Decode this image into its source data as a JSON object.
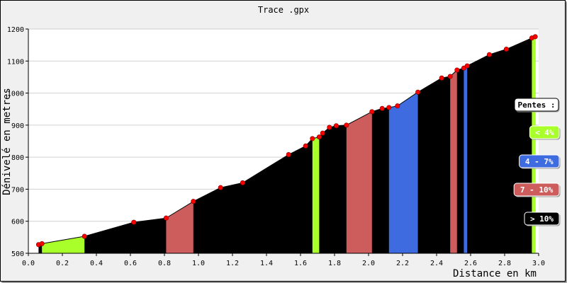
{
  "chart_data": {
    "type": "area",
    "title": "Trace .gpx",
    "xlabel": "Distance en km",
    "ylabel": "Dénivelé en metres",
    "xlim": [
      0.0,
      3.0
    ],
    "ylim": [
      500,
      1200
    ],
    "xticks": [
      "0.0",
      "0.2",
      "0.4",
      "0.6",
      "0.8",
      "1.0",
      "1.2",
      "1.4",
      "1.6",
      "1.8",
      "2.0",
      "2.2",
      "2.4",
      "2.6",
      "2.8",
      "3.0"
    ],
    "yticks": [
      "500",
      "600",
      "700",
      "800",
      "900",
      "1000",
      "1100",
      "1200"
    ],
    "grid": "horizontal",
    "profile": [
      {
        "x": 0.06,
        "y": 527
      },
      {
        "x": 0.08,
        "y": 530
      },
      {
        "x": 0.33,
        "y": 553
      },
      {
        "x": 0.62,
        "y": 597
      },
      {
        "x": 0.81,
        "y": 610
      },
      {
        "x": 0.97,
        "y": 662
      },
      {
        "x": 1.13,
        "y": 705
      },
      {
        "x": 1.26,
        "y": 720
      },
      {
        "x": 1.53,
        "y": 808
      },
      {
        "x": 1.63,
        "y": 835
      },
      {
        "x": 1.67,
        "y": 858
      },
      {
        "x": 1.71,
        "y": 863
      },
      {
        "x": 1.73,
        "y": 875
      },
      {
        "x": 1.77,
        "y": 893
      },
      {
        "x": 1.81,
        "y": 898
      },
      {
        "x": 1.87,
        "y": 900
      },
      {
        "x": 2.02,
        "y": 942
      },
      {
        "x": 2.08,
        "y": 952
      },
      {
        "x": 2.12,
        "y": 955
      },
      {
        "x": 2.17,
        "y": 960
      },
      {
        "x": 2.29,
        "y": 1003
      },
      {
        "x": 2.43,
        "y": 1047
      },
      {
        "x": 2.48,
        "y": 1052
      },
      {
        "x": 2.52,
        "y": 1072
      },
      {
        "x": 2.56,
        "y": 1078
      },
      {
        "x": 2.58,
        "y": 1085
      },
      {
        "x": 2.71,
        "y": 1120
      },
      {
        "x": 2.81,
        "y": 1137
      },
      {
        "x": 2.96,
        "y": 1172
      },
      {
        "x": 2.98,
        "y": 1176
      }
    ],
    "segments": [
      {
        "from": 0.08,
        "to": 0.33,
        "category": "< 4%"
      },
      {
        "from": 0.81,
        "to": 0.97,
        "category": "7 - 10%"
      },
      {
        "from": 1.67,
        "to": 1.71,
        "category": "< 4%"
      },
      {
        "from": 1.87,
        "to": 2.02,
        "category": "7 - 10%"
      },
      {
        "from": 2.12,
        "to": 2.29,
        "category": "4 - 7%"
      },
      {
        "from": 2.48,
        "to": 2.52,
        "category": "7 - 10%"
      },
      {
        "from": 2.56,
        "to": 2.58,
        "category": "4 - 7%"
      },
      {
        "from": 2.96,
        "to": 2.98,
        "category": "< 4%"
      }
    ],
    "legend": {
      "title": "Pentes :",
      "placement": "right",
      "items": [
        {
          "label": "< 4%",
          "color": "#a8ff2a",
          "text_color": "#ffffff"
        },
        {
          "label": "4 - 7%",
          "color": "#3e6bdf",
          "text_color": "#ffffff"
        },
        {
          "label": "7 - 10%",
          "color": "#cd5c5c",
          "text_color": "#ffffff"
        },
        {
          "label": "> 10%",
          "color": "#000000",
          "text_color": "#ffffff"
        }
      ]
    },
    "colors": {
      "fill": "#000000",
      "marker": "#ff0000",
      "grid": "#d0d0d0"
    }
  }
}
